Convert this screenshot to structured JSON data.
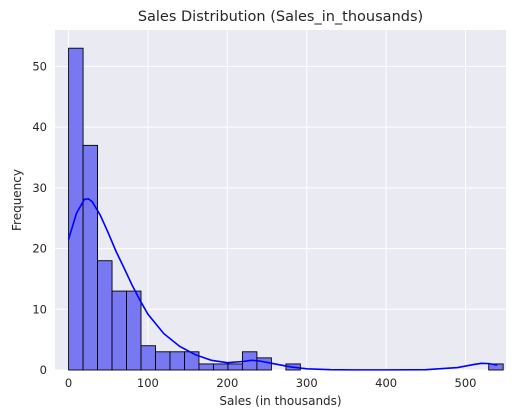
{
  "chart_data": {
    "type": "histogram",
    "title": "Sales Distribution (Sales_in_thousands)",
    "xlabel": "Sales (in thousands)",
    "ylabel": "Frequency",
    "xlim": [
      -17,
      551
    ],
    "ylim": [
      0,
      56
    ],
    "xticks": [
      0,
      100,
      200,
      300,
      400,
      500
    ],
    "yticks": [
      0,
      10,
      20,
      30,
      40,
      50
    ],
    "grid": true,
    "bar_color": "#7878F2",
    "bar_edge_color": "#000000",
    "kde_color": "#0000FF",
    "plot_background": "#EAEAF2",
    "bin_edges": [
      0.11,
      18.35,
      36.6,
      54.84,
      73.09,
      91.33,
      109.58,
      127.82,
      146.07,
      164.31,
      182.56,
      200.8,
      219.05,
      237.29,
      255.54,
      273.78,
      292.03,
      310.27,
      328.52,
      346.76,
      365.01,
      383.25,
      401.5,
      419.74,
      437.99,
      456.23,
      474.48,
      492.72,
      510.97,
      529.21,
      547.46
    ],
    "counts": [
      53,
      37,
      18,
      13,
      13,
      4,
      3,
      3,
      3,
      1,
      1,
      1,
      3,
      2,
      0,
      1,
      0,
      0,
      0,
      0,
      0,
      0,
      0,
      0,
      0,
      0,
      0,
      0,
      0,
      1
    ],
    "kde_x": [
      0,
      10,
      20,
      25,
      30,
      40,
      50,
      60,
      70,
      80,
      90,
      100,
      120,
      140,
      160,
      180,
      200,
      220,
      230,
      240,
      260,
      280,
      300,
      330,
      360,
      400,
      450,
      490,
      510,
      520,
      530,
      540
    ],
    "kde_y": [
      21.5,
      25.8,
      28.1,
      28.2,
      27.7,
      25.5,
      22.6,
      19.5,
      16.8,
      14.0,
      11.5,
      9.2,
      6.0,
      3.9,
      2.5,
      1.6,
      1.2,
      1.4,
      1.6,
      1.5,
      1.0,
      0.5,
      0.2,
      0.05,
      0.02,
      0.02,
      0.05,
      0.4,
      0.9,
      1.1,
      1.05,
      0.8
    ]
  }
}
